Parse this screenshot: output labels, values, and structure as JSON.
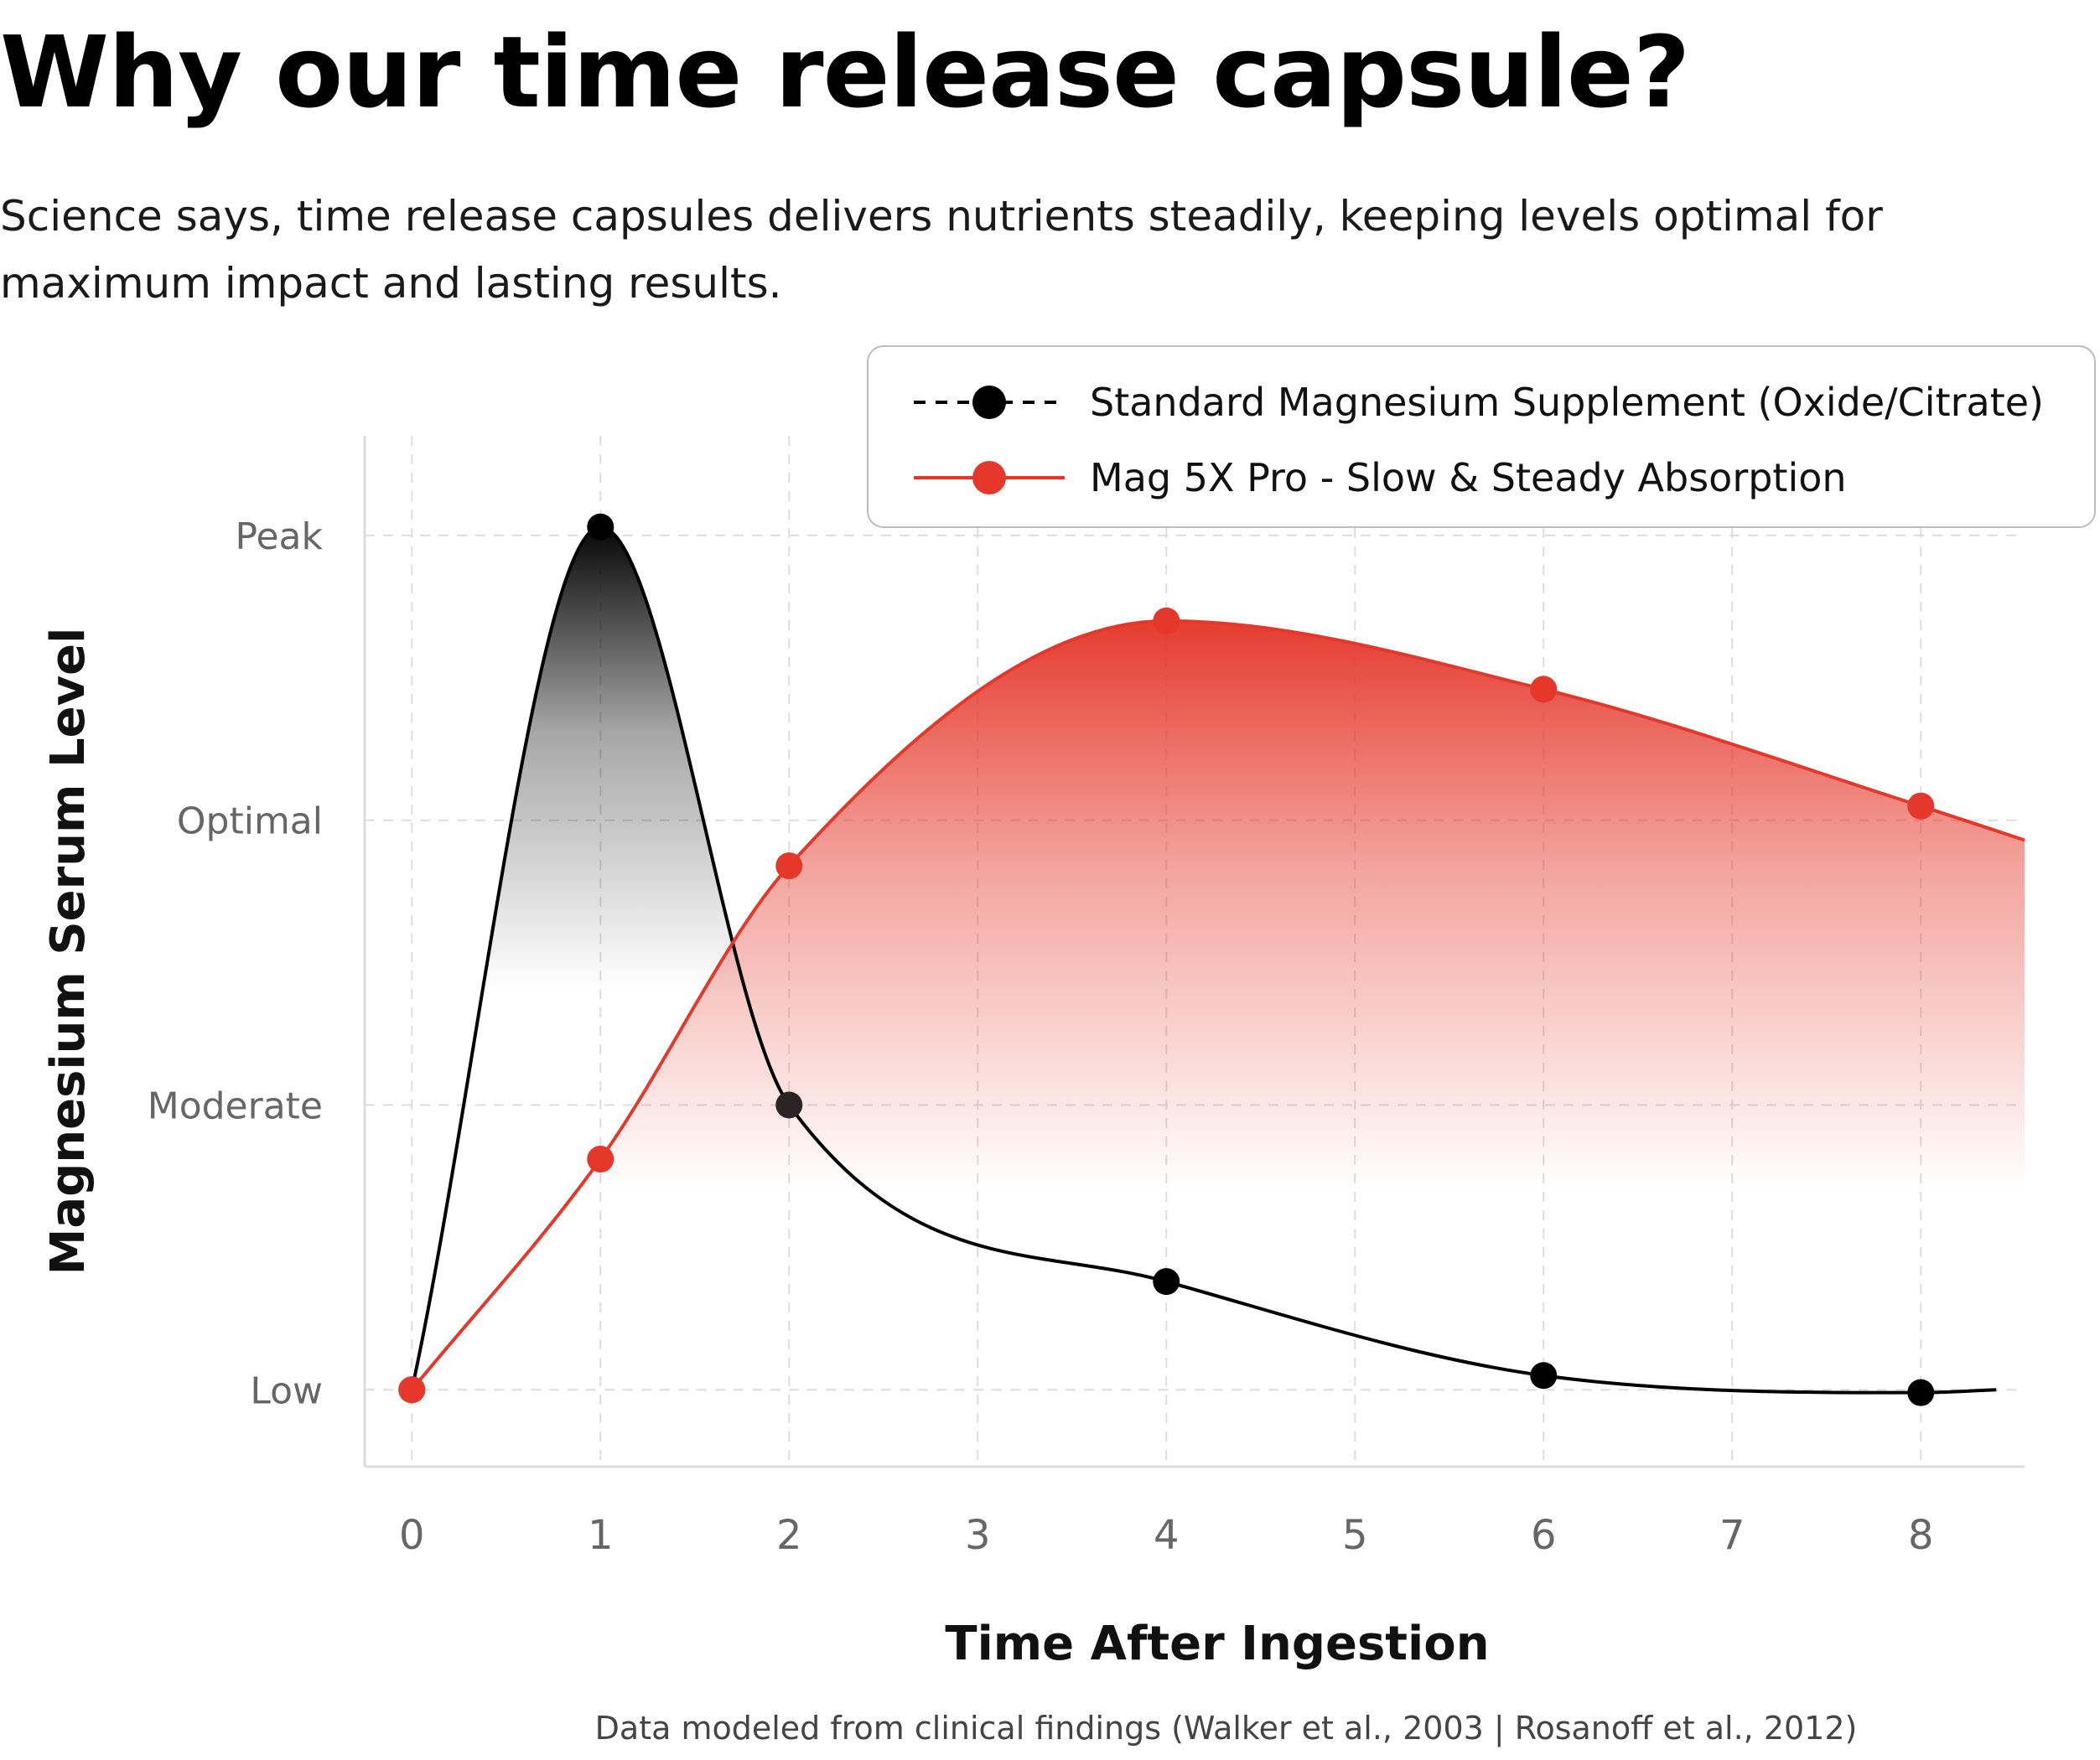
{
  "header": {
    "title": "Why our time release capsule?",
    "subtitle": "Science says, time release capsules delivers nutrients steadily, keeping levels optimal for maximum impact and lasting results."
  },
  "footer": {
    "source": "Data modeled from clinical findings (Walker et al., 2003 | Rosanoff et al., 2012)"
  },
  "colors": {
    "standard": "#000000",
    "mag5x": "#e5382b",
    "grid": "#dddddd"
  },
  "chart_data": {
    "type": "line",
    "xlabel": "Time After Ingestion",
    "ylabel": "Magnesium Serum Level",
    "x_ticks": [
      "0",
      "1",
      "2",
      "3",
      "4",
      "5",
      "6",
      "7",
      "8"
    ],
    "y_ticks": [
      "Low",
      "Moderate",
      "Optimal",
      "Peak"
    ],
    "xlim": [
      -0.25,
      8.55
    ],
    "ylim": [
      -0.27,
      3.35
    ],
    "grid": true,
    "legend_position": "top-right",
    "series": [
      {
        "name": "Standard Magnesium Supplement (Oxide/Citrate)",
        "style": "dashed-black",
        "x": [
          0,
          1,
          2,
          4,
          6,
          8
        ],
        "y": [
          0,
          3.03,
          1.0,
          0.38,
          0.05,
          -0.01
        ],
        "extends_to_x": 8.4
      },
      {
        "name": "Mag 5X Pro - Slow & Steady Absorption",
        "style": "solid-red",
        "x": [
          0,
          1,
          2,
          4,
          6,
          8
        ],
        "y": [
          0,
          0.81,
          1.84,
          2.7,
          2.46,
          2.05
        ],
        "extends_to_x": 8.55,
        "extends_to_y": 1.93
      }
    ]
  }
}
